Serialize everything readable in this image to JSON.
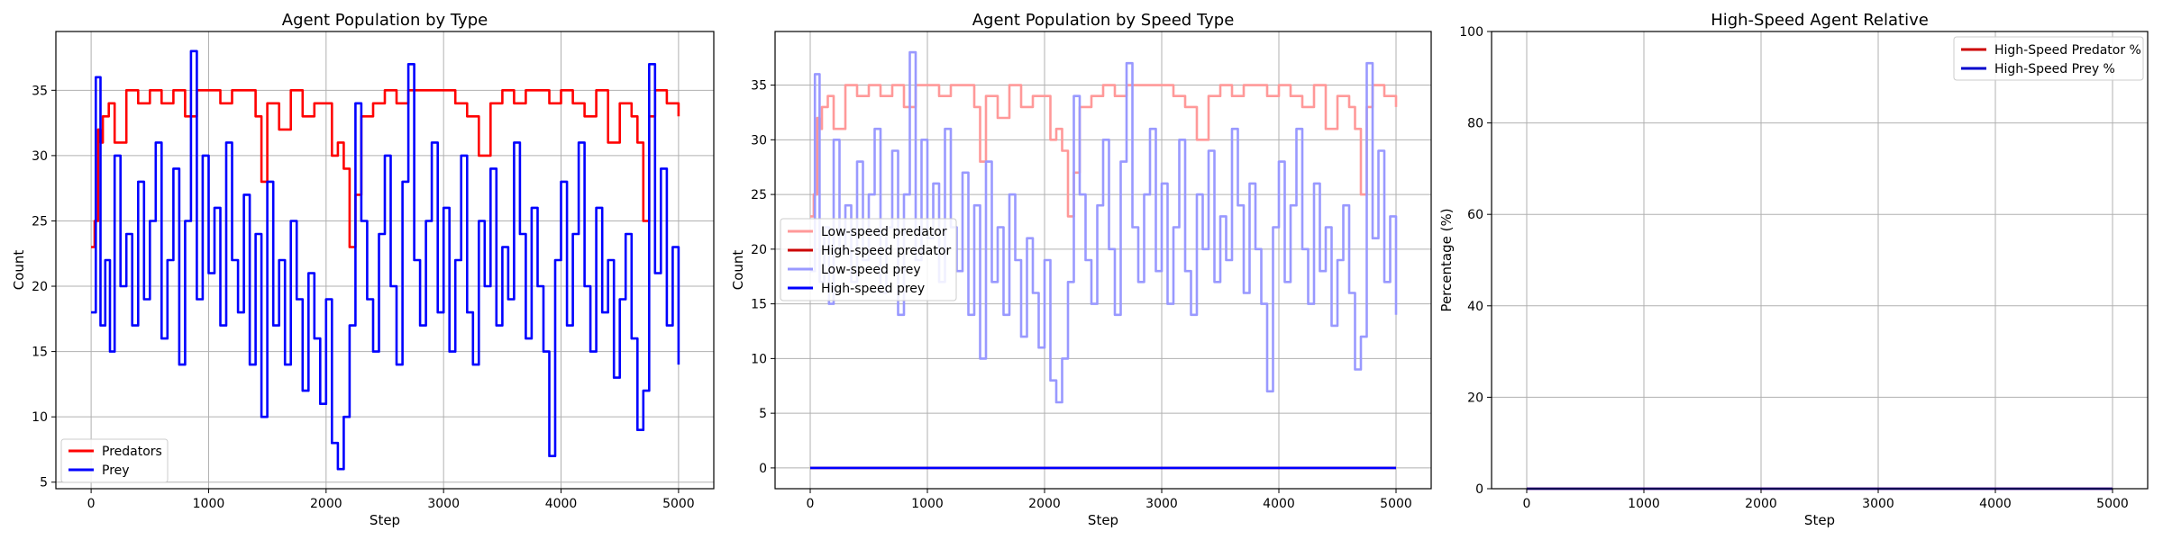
{
  "figure": {
    "background": "#ffffff"
  },
  "chart_data": [
    {
      "type": "line",
      "title": "Agent Population by Type",
      "xlabel": "Step",
      "ylabel": "Count",
      "xlim": [
        -300,
        5300
      ],
      "ylim": [
        4.5,
        39.5
      ],
      "xticks": [
        0,
        1000,
        2000,
        3000,
        4000,
        5000
      ],
      "yticks": [
        5,
        10,
        15,
        20,
        25,
        30,
        35
      ],
      "grid": true,
      "legend_position": "lower-left",
      "series": [
        {
          "name": "Predators",
          "color": "#ff0000",
          "x": [
            0,
            30,
            60,
            80,
            100,
            150,
            200,
            300,
            400,
            500,
            600,
            700,
            800,
            900,
            1000,
            1100,
            1200,
            1300,
            1400,
            1450,
            1500,
            1600,
            1700,
            1800,
            1900,
            2000,
            2050,
            2100,
            2150,
            2200,
            2250,
            2300,
            2400,
            2500,
            2600,
            2700,
            2800,
            2900,
            3000,
            3100,
            3200,
            3300,
            3400,
            3500,
            3600,
            3700,
            3800,
            3900,
            4000,
            4100,
            4200,
            4300,
            4400,
            4500,
            4600,
            4650,
            4700,
            4750,
            4800,
            4900,
            5000
          ],
          "y": [
            23,
            25,
            32,
            31,
            33,
            34,
            31,
            35,
            34,
            35,
            34,
            35,
            33,
            35,
            35,
            34,
            35,
            35,
            33,
            28,
            34,
            32,
            35,
            33,
            34,
            34,
            30,
            31,
            29,
            23,
            27,
            33,
            34,
            35,
            34,
            35,
            35,
            35,
            35,
            34,
            33,
            30,
            34,
            35,
            34,
            35,
            35,
            34,
            35,
            34,
            33,
            35,
            31,
            34,
            33,
            31,
            25,
            33,
            35,
            34,
            33
          ]
        },
        {
          "name": "Prey",
          "color": "#0000ff",
          "x": [
            0,
            40,
            80,
            120,
            160,
            200,
            250,
            300,
            350,
            400,
            450,
            500,
            550,
            600,
            650,
            700,
            750,
            800,
            850,
            900,
            950,
            1000,
            1050,
            1100,
            1150,
            1200,
            1250,
            1300,
            1350,
            1400,
            1450,
            1500,
            1550,
            1600,
            1650,
            1700,
            1750,
            1800,
            1850,
            1900,
            1950,
            2000,
            2050,
            2100,
            2150,
            2200,
            2250,
            2300,
            2350,
            2400,
            2450,
            2500,
            2550,
            2600,
            2650,
            2700,
            2750,
            2800,
            2850,
            2900,
            2950,
            3000,
            3050,
            3100,
            3150,
            3200,
            3250,
            3300,
            3350,
            3400,
            3450,
            3500,
            3550,
            3600,
            3650,
            3700,
            3750,
            3800,
            3850,
            3900,
            3950,
            4000,
            4050,
            4100,
            4150,
            4200,
            4250,
            4300,
            4350,
            4400,
            4450,
            4500,
            4550,
            4600,
            4650,
            4700,
            4750,
            4800,
            4850,
            4900,
            4950,
            5000
          ],
          "y": [
            18,
            36,
            17,
            22,
            15,
            30,
            20,
            24,
            17,
            28,
            19,
            25,
            31,
            16,
            22,
            29,
            14,
            25,
            38,
            19,
            30,
            21,
            26,
            17,
            31,
            22,
            18,
            27,
            14,
            24,
            10,
            28,
            17,
            22,
            14,
            25,
            19,
            12,
            21,
            16,
            11,
            19,
            8,
            6,
            10,
            17,
            34,
            25,
            19,
            15,
            24,
            30,
            20,
            14,
            28,
            37,
            22,
            17,
            25,
            31,
            18,
            26,
            15,
            22,
            30,
            18,
            14,
            25,
            20,
            29,
            17,
            23,
            19,
            31,
            24,
            16,
            26,
            20,
            15,
            7,
            22,
            28,
            17,
            24,
            31,
            20,
            15,
            26,
            18,
            22,
            13,
            19,
            24,
            16,
            9,
            12,
            37,
            21,
            29,
            17,
            23,
            14
          ]
        }
      ]
    },
    {
      "type": "line",
      "title": "Agent Population by Speed Type",
      "xlabel": "Step",
      "ylabel": "Count",
      "xlim": [
        -300,
        5300
      ],
      "ylim": [
        -1.9,
        39.9
      ],
      "xticks": [
        0,
        1000,
        2000,
        3000,
        4000,
        5000
      ],
      "yticks": [
        0,
        5,
        10,
        15,
        20,
        25,
        30,
        35
      ],
      "grid": true,
      "legend_position": "center-left",
      "series": [
        {
          "name": "Low-speed predator",
          "color": "#ff9999",
          "x": [
            0,
            30,
            60,
            80,
            100,
            150,
            200,
            300,
            400,
            500,
            600,
            700,
            800,
            900,
            1000,
            1100,
            1200,
            1300,
            1400,
            1450,
            1500,
            1600,
            1700,
            1800,
            1900,
            2000,
            2050,
            2100,
            2150,
            2200,
            2250,
            2300,
            2400,
            2500,
            2600,
            2700,
            2800,
            2900,
            3000,
            3100,
            3200,
            3300,
            3400,
            3500,
            3600,
            3700,
            3800,
            3900,
            4000,
            4100,
            4200,
            4300,
            4400,
            4500,
            4600,
            4650,
            4700,
            4750,
            4800,
            4900,
            5000
          ],
          "y": [
            23,
            25,
            32,
            31,
            33,
            34,
            31,
            35,
            34,
            35,
            34,
            35,
            33,
            35,
            35,
            34,
            35,
            35,
            33,
            28,
            34,
            32,
            35,
            33,
            34,
            34,
            30,
            31,
            29,
            23,
            27,
            33,
            34,
            35,
            34,
            35,
            35,
            35,
            35,
            34,
            33,
            30,
            34,
            35,
            34,
            35,
            35,
            34,
            35,
            34,
            33,
            35,
            31,
            34,
            33,
            31,
            25,
            33,
            35,
            34,
            33
          ]
        },
        {
          "name": "High-speed predator",
          "color": "#cc0000",
          "x": [
            0,
            5000
          ],
          "y": [
            0,
            0
          ]
        },
        {
          "name": "Low-speed prey",
          "color": "#9999ff",
          "x": [
            0,
            40,
            80,
            120,
            160,
            200,
            250,
            300,
            350,
            400,
            450,
            500,
            550,
            600,
            650,
            700,
            750,
            800,
            850,
            900,
            950,
            1000,
            1050,
            1100,
            1150,
            1200,
            1250,
            1300,
            1350,
            1400,
            1450,
            1500,
            1550,
            1600,
            1650,
            1700,
            1750,
            1800,
            1850,
            1900,
            1950,
            2000,
            2050,
            2100,
            2150,
            2200,
            2250,
            2300,
            2350,
            2400,
            2450,
            2500,
            2550,
            2600,
            2650,
            2700,
            2750,
            2800,
            2850,
            2900,
            2950,
            3000,
            3050,
            3100,
            3150,
            3200,
            3250,
            3300,
            3350,
            3400,
            3450,
            3500,
            3550,
            3600,
            3650,
            3700,
            3750,
            3800,
            3850,
            3900,
            3950,
            4000,
            4050,
            4100,
            4150,
            4200,
            4250,
            4300,
            4350,
            4400,
            4450,
            4500,
            4550,
            4600,
            4650,
            4700,
            4750,
            4800,
            4850,
            4900,
            4950,
            5000
          ],
          "y": [
            18,
            36,
            17,
            22,
            15,
            30,
            20,
            24,
            17,
            28,
            19,
            25,
            31,
            16,
            22,
            29,
            14,
            25,
            38,
            19,
            30,
            21,
            26,
            17,
            31,
            22,
            18,
            27,
            14,
            24,
            10,
            28,
            17,
            22,
            14,
            25,
            19,
            12,
            21,
            16,
            11,
            19,
            8,
            6,
            10,
            17,
            34,
            25,
            19,
            15,
            24,
            30,
            20,
            14,
            28,
            37,
            22,
            17,
            25,
            31,
            18,
            26,
            15,
            22,
            30,
            18,
            14,
            25,
            20,
            29,
            17,
            23,
            19,
            31,
            24,
            16,
            26,
            20,
            15,
            7,
            22,
            28,
            17,
            24,
            31,
            20,
            15,
            26,
            18,
            22,
            13,
            19,
            24,
            16,
            9,
            12,
            37,
            21,
            29,
            17,
            23,
            14
          ]
        },
        {
          "name": "High-speed prey",
          "color": "#0000ff",
          "x": [
            0,
            5000
          ],
          "y": [
            0,
            0
          ]
        }
      ]
    },
    {
      "type": "line",
      "title": "High-Speed Agent Relative",
      "xlabel": "Step",
      "ylabel": "Percentage (%)",
      "xlim": [
        -300,
        5300
      ],
      "ylim": [
        0,
        100
      ],
      "xticks": [
        0,
        1000,
        2000,
        3000,
        4000,
        5000
      ],
      "yticks": [
        0,
        20,
        40,
        60,
        80,
        100
      ],
      "grid": true,
      "legend_position": "top-right",
      "series": [
        {
          "name": "High-Speed Predator %",
          "color": "#cc0000",
          "x": [
            0,
            5000
          ],
          "y": [
            0,
            0
          ]
        },
        {
          "name": "High-Speed Prey %",
          "color": "#0000cc",
          "x": [
            0,
            5000
          ],
          "y": [
            0,
            0
          ]
        }
      ]
    }
  ]
}
